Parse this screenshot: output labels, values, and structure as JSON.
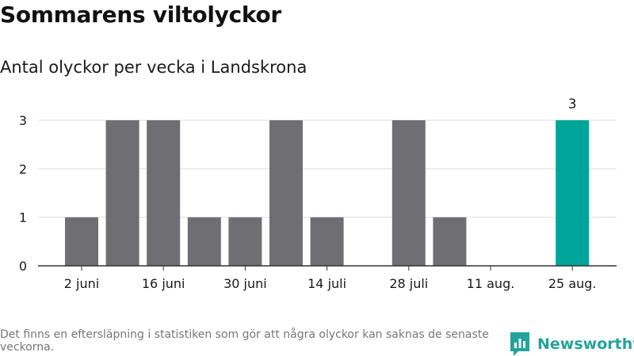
{
  "title": "Sommarens viltolyckor",
  "subtitle": "Antal olyckor per vecka i Landskrona",
  "footnote": "Det finns en eftersläpning i statistiken som gör att några olyckor kan saknas de senaste veckorna.",
  "brand": {
    "name": "Newsworthy",
    "icon": "newsworthy-logo-icon"
  },
  "colors": {
    "bar": "#6f6e73",
    "highlight": "#00a59a",
    "grid": "#dddddd",
    "axis": "#333333"
  },
  "chart_data": {
    "type": "bar",
    "categories": [
      "2 juni",
      "9 juni",
      "16 juni",
      "23 juni",
      "30 juni",
      "7 juli",
      "14 juli",
      "21 juli",
      "28 juli",
      "4 aug.",
      "11 aug.",
      "18 aug.",
      "25 aug."
    ],
    "values": [
      1,
      3,
      3,
      1,
      1,
      3,
      1,
      0,
      3,
      1,
      0,
      0,
      3
    ],
    "x_tick_labels": [
      "2 juni",
      "16 juni",
      "30 juni",
      "14 juli",
      "28 juli",
      "11 aug.",
      "25 aug."
    ],
    "y_ticks": [
      0,
      1,
      2,
      3
    ],
    "ylim": [
      0,
      3
    ],
    "highlight_index": 12,
    "highlight_label": "3",
    "grid": true
  }
}
